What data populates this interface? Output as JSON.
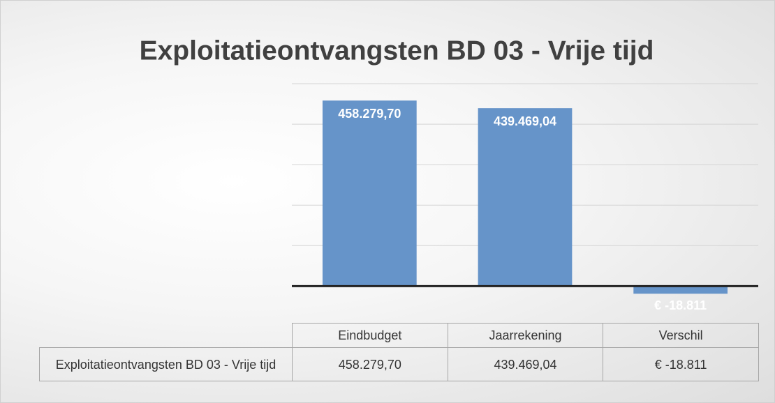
{
  "chart_data": {
    "type": "bar",
    "title": "Exploitatieontvangsten BD 03 - Vrije tijd",
    "categories": [
      "Eindbudget",
      "Jaarrekening",
      "Verschil"
    ],
    "series": [
      {
        "name": "Exploitatieontvangsten BD 03 - Vrije tijd",
        "color": "#6694c9",
        "values": [
          458279.7,
          439469.04,
          -18811
        ],
        "value_labels": [
          "458.279,70",
          "439.469,04",
          "€ -18.811"
        ]
      }
    ],
    "ylim": [
      -70000,
      500000
    ],
    "yticks": [
      0,
      100000,
      200000,
      300000,
      400000,
      500000
    ],
    "grid": true
  }
}
